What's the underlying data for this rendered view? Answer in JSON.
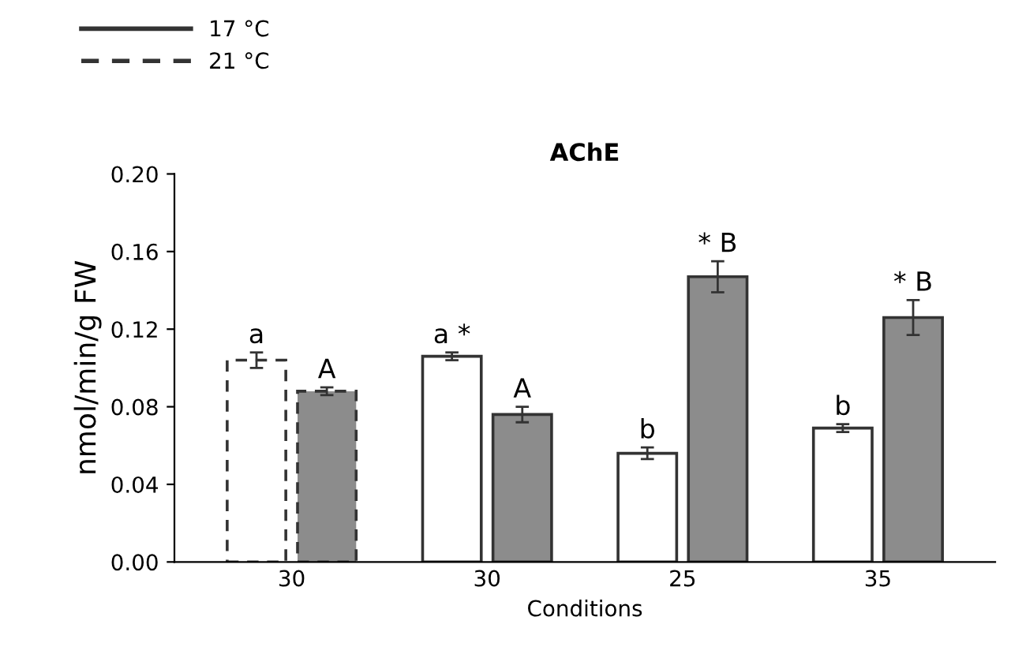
{
  "chart_data": {
    "type": "bar",
    "title": "AChE",
    "xlabel": "Conditions",
    "ylabel": "nmol/min/g FW",
    "categories": [
      "30",
      "30",
      "25",
      "35"
    ],
    "series": [
      {
        "name": "17 °C",
        "line_style": "solid",
        "color": "#ffffff",
        "values": [
          null,
          0.106,
          0.056,
          0.069
        ],
        "errors": [
          null,
          0.002,
          0.003,
          0.002
        ],
        "value_labels": [
          null,
          "a *",
          "b",
          "b"
        ]
      },
      {
        "line_style": "solid",
        "color": "#8c8c8c",
        "values": [
          null,
          0.076,
          0.147,
          0.126
        ],
        "errors": [
          null,
          0.004,
          0.008,
          0.009
        ],
        "value_labels": [
          null,
          "A",
          "* B",
          "* B"
        ]
      },
      {
        "name": "21 °C",
        "line_style": "dashed",
        "color": "#ffffff",
        "values": [
          0.104,
          null,
          null,
          null
        ],
        "errors": [
          0.004,
          null,
          null,
          null
        ],
        "value_labels": [
          "a",
          null,
          null,
          null
        ]
      },
      {
        "line_style": "dashed",
        "color": "#8c8c8c",
        "values": [
          0.088,
          null,
          null,
          null
        ],
        "errors": [
          0.002,
          null,
          null,
          null
        ],
        "value_labels": [
          "A",
          null,
          null,
          null
        ]
      }
    ],
    "ylim": [
      0,
      0.2
    ],
    "yticks": [
      {
        "value": 0,
        "label": "0.00"
      },
      {
        "value": 0.04,
        "label": "0.04"
      },
      {
        "value": 0.08,
        "label": "0.08"
      },
      {
        "value": 0.12,
        "label": "0.12"
      },
      {
        "value": 0.16,
        "label": "0.16"
      },
      {
        "value": 0.2,
        "label": "0.20"
      }
    ],
    "grid": false,
    "legend": "top left"
  }
}
